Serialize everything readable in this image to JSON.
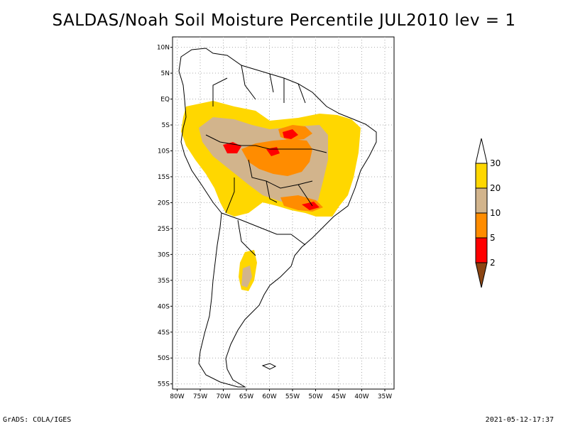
{
  "title": "SALDAS/Noah Soil Moisture Percentile JUL2010 lev = 1",
  "footer": {
    "left": "GrADS: COLA/IGES",
    "right": "2021-05-12-17:37"
  },
  "map": {
    "lat_labels": [
      "10N",
      "5N",
      "EQ",
      "5S",
      "10S",
      "15S",
      "20S",
      "25S",
      "30S",
      "35S",
      "40S",
      "45S",
      "50S",
      "55S"
    ],
    "lon_labels": [
      "80W",
      "75W",
      "70W",
      "65W",
      "60W",
      "55W",
      "50W",
      "45W",
      "40W",
      "35W"
    ],
    "lat_values": [
      10,
      5,
      0,
      -5,
      -10,
      -15,
      -20,
      -25,
      -30,
      -35,
      -40,
      -45,
      -50,
      -55
    ],
    "lon_values": [
      -80,
      -75,
      -70,
      -65,
      -60,
      -55,
      -50,
      -45,
      -40,
      -35
    ],
    "lon_range": [
      -81,
      -33
    ],
    "lat_range": [
      -56,
      12
    ],
    "gridlines": true
  },
  "legend": {
    "levels": [
      {
        "label": "30",
        "color": "#ffffff"
      },
      {
        "label": "20",
        "color": "#ffd700"
      },
      {
        "label": "10",
        "color": "#d2b48c"
      },
      {
        "label": "5",
        "color": "#ff8c00"
      },
      {
        "label": "2",
        "color": "#ff0000"
      },
      {
        "label": "",
        "color": "#8b4513"
      }
    ]
  },
  "colors": {
    "white": "#ffffff",
    "yellow": "#ffd700",
    "tan": "#d2b48c",
    "orange": "#ff8c00",
    "red": "#ff0000",
    "brown": "#8b4513"
  }
}
